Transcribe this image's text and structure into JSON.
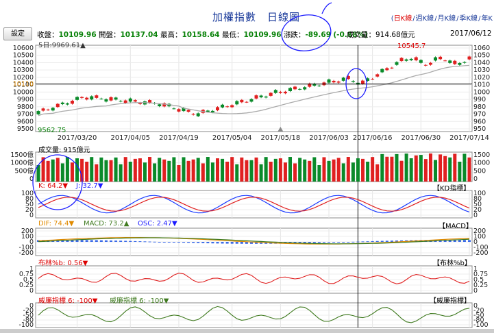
{
  "header": {
    "title": "加權指數　日線圖",
    "links": [
      "日K線",
      "週K線",
      "月K線",
      "季K線",
      "年K"
    ],
    "active_link": 0
  },
  "info": {
    "setting_button": "設定",
    "close_label": "收盤：",
    "close_value": "10109.96",
    "open_label": "開盤：",
    "open_value": "10137.04",
    "high_label": "最高：",
    "high_value": "10158.64",
    "low_label": "最低：",
    "low_value": "10109.96",
    "change_label": "漲跌：",
    "change_value": "-89.69",
    "change_pct": "(-0.88%)",
    "volume_label": "成交量：914.68億元",
    "date": "2017/06/12"
  },
  "main_chart": {
    "ma_label": "5日:9969.61▲",
    "high_marker": "10545.7",
    "low_marker": "9562.75",
    "crosshair_value": "10110",
    "y_ticks": [
      "10600",
      "10500",
      "10400",
      "10300",
      "10200",
      "10100",
      "10000",
      "9900",
      "9800",
      "9700",
      "9600",
      "9500"
    ],
    "right_ticks": [
      "1060",
      "1050",
      "1040",
      "1030",
      "1020",
      "1010",
      "1000",
      "990",
      "980",
      "970",
      "960",
      "950"
    ],
    "x_ticks": [
      "2017/03/20",
      "2017/04/05",
      "2017/04/19",
      "2017/05/04",
      "2017/05/18",
      "2017/06/03",
      "2017/06/16",
      "2017/06/30",
      "2017/07/14"
    ]
  },
  "volume_panel": {
    "label": "成交量: 915億元",
    "y_ticks": [
      "1500億",
      "1000億",
      "500億",
      "0"
    ],
    "right_ticks": [
      "1500",
      "1000",
      "500",
      "0"
    ]
  },
  "kd_panel": {
    "k_label": "K: 64.2▼",
    "j_label": "J: 32.7▼",
    "title": "【KD指標】",
    "y_ticks": [
      "100",
      "80",
      "50",
      "20",
      "0"
    ],
    "right_ticks": [
      "100",
      "80",
      "50",
      "20",
      "0"
    ]
  },
  "macd_panel": {
    "dif_label": "DIF: 74.4▼",
    "macd_label": "MACD: 73.2▲",
    "osc_label": "OSC: 2.47▼",
    "title": "【MACD】",
    "y_ticks": [
      "200",
      "100",
      "0",
      "-100",
      "-200"
    ],
    "right_ticks": [
      "200",
      "100",
      "0",
      "-100",
      "-200"
    ]
  },
  "boll_panel": {
    "label": "布林%b: 0.56▼",
    "title": "【布林%b】",
    "y_ticks": [
      "1",
      "0.75",
      "0.5",
      "0.25",
      "0"
    ],
    "right_ticks": [
      "1",
      "0.75",
      "0.5",
      "0.25",
      "0"
    ]
  },
  "wr_panel": {
    "label1": "威廉指標 6: -100▼",
    "label2": "威廉指標 6: -100▼",
    "title": "【威廉指標】",
    "y_ticks": [
      "0",
      "-20",
      "-50",
      "-80",
      "-100"
    ],
    "right_ticks": [
      "0",
      "-20",
      "-50",
      "-80",
      "-100"
    ]
  },
  "colors": {
    "up": "#e02020",
    "down": "#0a8a2a",
    "ma": "#aaaaaa",
    "k_line": "#1a3aff",
    "d_line": "#e02020",
    "annotation": "#1a1aff"
  }
}
